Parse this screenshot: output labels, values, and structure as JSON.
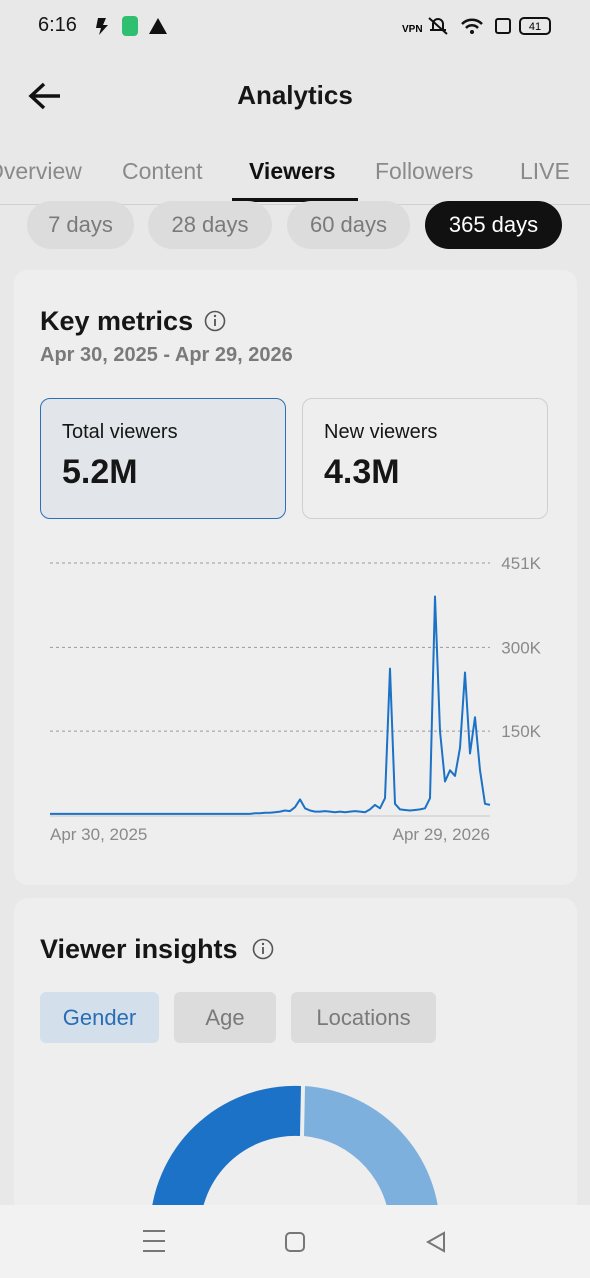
{
  "status_bar": {
    "time": "6:16",
    "battery": "41"
  },
  "header": {
    "title": "Analytics"
  },
  "tabs": {
    "items": [
      "Overview",
      "Content",
      "Viewers",
      "Followers",
      "LIVE"
    ],
    "selected": 2
  },
  "periods": {
    "items": [
      "7 days",
      "28 days",
      "60 days",
      "365 days"
    ],
    "selected": 3
  },
  "key_metrics": {
    "title": "Key metrics",
    "date_range": "Apr 30, 2025 - Apr 29, 2026",
    "cards": [
      {
        "label": "Total viewers",
        "value": "5.2M"
      },
      {
        "label": "New viewers",
        "value": "4.3M"
      }
    ],
    "selected": 0
  },
  "chart_data": {
    "type": "line",
    "color": "#1b72c6",
    "grid": true,
    "ylim": [
      0,
      451000
    ],
    "yticks": [
      {
        "value": 150000,
        "label": "150K"
      },
      {
        "value": 300000,
        "label": "300K"
      },
      {
        "value": 451000,
        "label": "451K"
      }
    ],
    "categories": [
      "Apr 30, 2025",
      null,
      null,
      null,
      null,
      null,
      null,
      null,
      null,
      null,
      null,
      null,
      null,
      null,
      null,
      null,
      null,
      null,
      null,
      null,
      null,
      null,
      null,
      null,
      null,
      null,
      null,
      null,
      null,
      null,
      null,
      null,
      null,
      null,
      null,
      null,
      null,
      null,
      null,
      null,
      null,
      null,
      null,
      null,
      null,
      null,
      null,
      null,
      null,
      null,
      null,
      null,
      null,
      null,
      null,
      null,
      null,
      null,
      null,
      null,
      null,
      null,
      null,
      null,
      null,
      null,
      null,
      null,
      null,
      null,
      null,
      null,
      null,
      null,
      null,
      null,
      null,
      null,
      null,
      null,
      null,
      null,
      null,
      null,
      null,
      null,
      null,
      null,
      "Apr 29, 2026"
    ],
    "values": [
      2000,
      2000,
      2000,
      2000,
      2000,
      2000,
      2000,
      2000,
      2000,
      2000,
      2000,
      2000,
      2000,
      2000,
      2000,
      2000,
      2000,
      2000,
      2000,
      2000,
      2000,
      2000,
      2000,
      2000,
      2000,
      2000,
      2000,
      2000,
      2000,
      2000,
      2000,
      2000,
      2000,
      2000,
      2000,
      2000,
      2000,
      2000,
      2000,
      2000,
      2000,
      3000,
      3000,
      4000,
      4000,
      5000,
      6000,
      8000,
      7000,
      14000,
      28000,
      12000,
      8000,
      6000,
      6000,
      7000,
      6000,
      5000,
      6000,
      5000,
      6000,
      7000,
      6000,
      5000,
      10000,
      18000,
      12000,
      30000,
      262000,
      20000,
      10000,
      9000,
      8000,
      9000,
      10000,
      12000,
      30000,
      391000,
      150000,
      60000,
      80000,
      70000,
      120000,
      255000,
      110000,
      175000,
      80000,
      20000,
      18000
    ]
  },
  "viewer_insights": {
    "title": "Viewer insights",
    "tabs": [
      "Gender",
      "Age",
      "Locations"
    ],
    "selected": 0
  }
}
